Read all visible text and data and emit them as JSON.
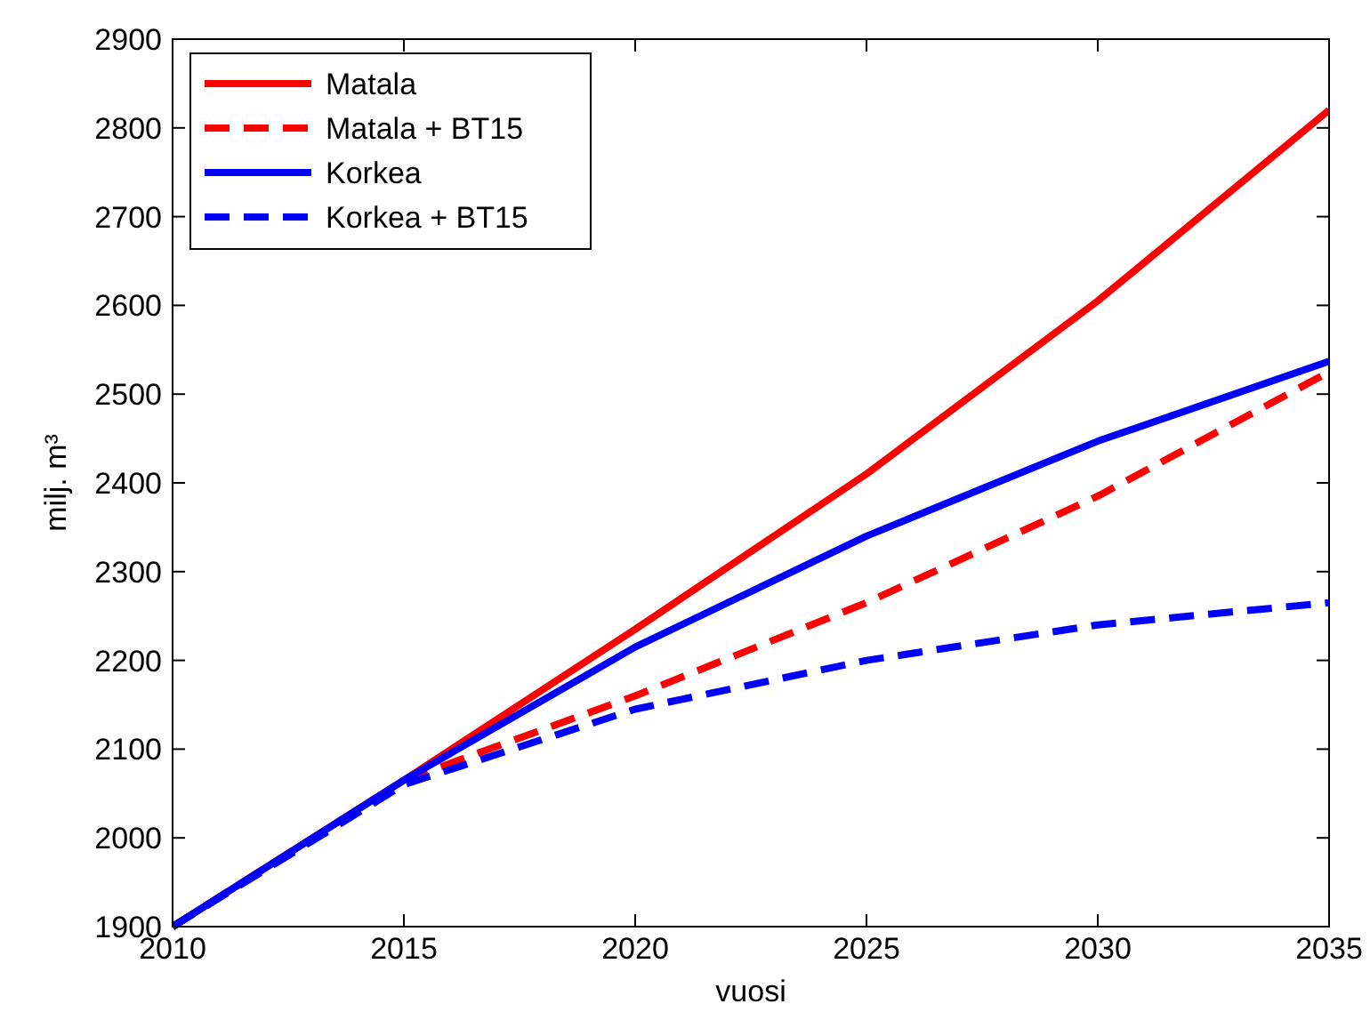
{
  "chart_data": {
    "type": "line",
    "xlabel": "vuosi",
    "ylabel": "milj. m³",
    "x": [
      2010,
      2015,
      2020,
      2025,
      2030,
      2035
    ],
    "series": [
      {
        "name": "Matala",
        "color": "#ff0000",
        "line_style": "solid",
        "values": [
          1900,
          2065,
          2235,
          2410,
          2605,
          2820
        ]
      },
      {
        "name": "Matala + BT15",
        "color": "#ff0000",
        "line_style": "dashed",
        "values": [
          1900,
          2065,
          2160,
          2265,
          2385,
          2525
        ]
      },
      {
        "name": "Korkea",
        "color": "#0000ff",
        "line_style": "solid",
        "values": [
          1900,
          2065,
          2215,
          2340,
          2447,
          2537
        ]
      },
      {
        "name": "Korkea + BT15",
        "color": "#0000ff",
        "line_style": "dashed",
        "values": [
          1900,
          2060,
          2145,
          2200,
          2240,
          2265
        ]
      }
    ],
    "xlim": [
      2010,
      2035
    ],
    "xticks": [
      2010,
      2015,
      2020,
      2025,
      2030,
      2035
    ],
    "ylim": [
      1900,
      2900
    ],
    "yticks": [
      1900,
      2000,
      2100,
      2200,
      2300,
      2400,
      2500,
      2600,
      2700,
      2800,
      2900
    ],
    "grid": false,
    "legend": "top left",
    "marker": "none"
  }
}
